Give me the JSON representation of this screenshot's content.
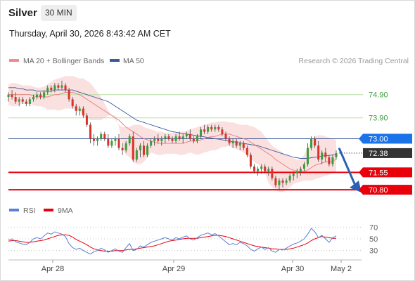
{
  "header": {
    "instrument": "Silver",
    "timeframe": "30 MIN"
  },
  "subtitle": "Thursday, April 30, 2026 8:43:42 AM CET",
  "legend": {
    "ma20_bb": "MA 20 + Bollinger Bands",
    "ma50": "MA 50",
    "source": "Research © 2026 Trading Central"
  },
  "rsi_legend": {
    "rsi": "RSI",
    "ma9": "9MA"
  },
  "colors": {
    "bull": "#3a9e3a",
    "bear": "#d9342b",
    "ma50": "#3c5a9a",
    "ma20": "#e77b7b",
    "band": "#fadbdb",
    "blue_label": "#1a73e8",
    "red_level": "#e8000b",
    "green_level": "#b9dfa4",
    "rsi": "#5b7fd6",
    "rsi_ma": "#e8000b",
    "current": "#333333"
  },
  "chart_data": [
    {
      "type": "candlestick",
      "ylim": [
        70.5,
        75.8
      ],
      "x_ticks": [
        "Apr 28",
        "Apr 29",
        "Apr 30",
        "May 2"
      ],
      "ohlc": [
        [
          74.8,
          75.0,
          74.6,
          74.9
        ],
        [
          74.9,
          75.1,
          74.7,
          74.8
        ],
        [
          74.8,
          75.0,
          74.5,
          74.6
        ],
        [
          74.6,
          74.8,
          74.4,
          74.7
        ],
        [
          74.7,
          74.8,
          74.5,
          74.6
        ],
        [
          74.6,
          74.7,
          74.4,
          74.5
        ],
        [
          74.5,
          74.8,
          74.4,
          74.7
        ],
        [
          74.7,
          74.9,
          74.6,
          74.8
        ],
        [
          74.8,
          75.0,
          74.7,
          74.9
        ],
        [
          74.9,
          75.0,
          74.7,
          74.8
        ],
        [
          74.8,
          75.1,
          74.7,
          75.0
        ],
        [
          75.0,
          75.3,
          74.9,
          75.2
        ],
        [
          75.2,
          75.3,
          75.0,
          75.1
        ],
        [
          75.1,
          75.4,
          75.0,
          75.3
        ],
        [
          75.3,
          75.4,
          75.1,
          75.2
        ],
        [
          75.2,
          75.5,
          75.1,
          75.3
        ],
        [
          75.3,
          75.4,
          75.0,
          75.1
        ],
        [
          75.1,
          75.2,
          74.6,
          74.7
        ],
        [
          74.7,
          74.8,
          74.3,
          74.4
        ],
        [
          74.4,
          74.5,
          74.0,
          74.2
        ],
        [
          74.2,
          74.4,
          74.0,
          74.3
        ],
        [
          74.3,
          74.4,
          73.9,
          74.0
        ],
        [
          74.0,
          74.1,
          73.5,
          73.6
        ],
        [
          73.6,
          73.7,
          72.8,
          73.0
        ],
        [
          73.0,
          73.2,
          72.7,
          72.9
        ],
        [
          72.9,
          73.1,
          72.7,
          73.0
        ],
        [
          73.0,
          73.3,
          72.9,
          73.2
        ],
        [
          73.2,
          73.3,
          72.9,
          73.0
        ],
        [
          73.0,
          73.2,
          72.6,
          72.7
        ],
        [
          72.7,
          73.0,
          72.6,
          72.9
        ],
        [
          72.9,
          73.1,
          72.7,
          73.0
        ],
        [
          73.0,
          73.2,
          72.5,
          72.6
        ],
        [
          72.6,
          72.8,
          72.3,
          72.5
        ],
        [
          72.5,
          72.9,
          72.4,
          72.8
        ],
        [
          72.8,
          73.2,
          72.7,
          73.1
        ],
        [
          73.1,
          73.3,
          72.0,
          72.1
        ],
        [
          72.1,
          72.6,
          72.0,
          72.5
        ],
        [
          72.5,
          72.8,
          72.2,
          72.7
        ],
        [
          72.7,
          72.9,
          72.2,
          72.3
        ],
        [
          72.3,
          72.8,
          72.2,
          72.7
        ],
        [
          72.7,
          73.0,
          72.6,
          72.9
        ],
        [
          72.9,
          73.1,
          72.7,
          73.0
        ],
        [
          73.0,
          73.2,
          72.8,
          72.9
        ],
        [
          72.9,
          73.1,
          72.7,
          73.0
        ],
        [
          73.0,
          73.2,
          72.8,
          73.1
        ],
        [
          73.1,
          73.2,
          72.9,
          73.0
        ],
        [
          73.0,
          73.1,
          72.8,
          72.9
        ],
        [
          72.9,
          73.2,
          72.8,
          73.1
        ],
        [
          73.1,
          73.3,
          72.9,
          73.0
        ],
        [
          73.0,
          73.2,
          72.8,
          73.1
        ],
        [
          73.1,
          73.3,
          73.0,
          73.2
        ],
        [
          73.2,
          73.4,
          72.9,
          73.0
        ],
        [
          73.0,
          73.1,
          72.8,
          72.9
        ],
        [
          72.9,
          73.2,
          72.8,
          73.1
        ],
        [
          73.1,
          73.5,
          73.0,
          73.4
        ],
        [
          73.4,
          73.6,
          73.2,
          73.3
        ],
        [
          73.3,
          73.6,
          73.2,
          73.5
        ],
        [
          73.5,
          73.6,
          73.3,
          73.4
        ],
        [
          73.4,
          73.6,
          73.3,
          73.5
        ],
        [
          73.5,
          73.6,
          73.3,
          73.4
        ],
        [
          73.4,
          73.5,
          73.1,
          73.2
        ],
        [
          73.2,
          73.3,
          72.9,
          73.0
        ],
        [
          73.0,
          73.1,
          72.7,
          72.8
        ],
        [
          72.8,
          73.0,
          72.6,
          72.9
        ],
        [
          72.9,
          73.0,
          72.6,
          72.7
        ],
        [
          72.7,
          72.9,
          72.5,
          72.8
        ],
        [
          72.8,
          72.9,
          72.5,
          72.6
        ],
        [
          72.6,
          72.7,
          72.2,
          72.3
        ],
        [
          72.3,
          72.4,
          71.7,
          71.8
        ],
        [
          71.8,
          71.9,
          71.5,
          71.6
        ],
        [
          71.6,
          71.8,
          71.4,
          71.7
        ],
        [
          71.7,
          71.9,
          71.5,
          71.8
        ],
        [
          71.8,
          71.9,
          71.5,
          71.6
        ],
        [
          71.6,
          71.8,
          71.4,
          71.7
        ],
        [
          71.7,
          71.8,
          71.2,
          71.3
        ],
        [
          71.3,
          71.4,
          70.9,
          71.0
        ],
        [
          71.0,
          71.3,
          70.8,
          71.2
        ],
        [
          71.2,
          71.3,
          70.9,
          71.1
        ],
        [
          71.1,
          71.3,
          71.0,
          71.2
        ],
        [
          71.2,
          71.5,
          71.1,
          71.4
        ],
        [
          71.4,
          71.6,
          71.2,
          71.5
        ],
        [
          71.5,
          71.7,
          71.3,
          71.6
        ],
        [
          71.6,
          71.8,
          71.4,
          71.7
        ],
        [
          71.7,
          72.0,
          71.6,
          71.9
        ],
        [
          71.9,
          72.8,
          71.8,
          72.6
        ],
        [
          72.6,
          73.1,
          72.5,
          73.0
        ],
        [
          73.0,
          73.1,
          72.6,
          72.7
        ],
        [
          72.7,
          72.9,
          72.0,
          72.1
        ],
        [
          72.1,
          72.5,
          71.9,
          72.4
        ],
        [
          72.4,
          72.6,
          72.0,
          72.2
        ],
        [
          72.2,
          72.3,
          71.8,
          71.9
        ],
        [
          71.9,
          72.3,
          71.8,
          72.2
        ],
        [
          72.2,
          72.5,
          72.1,
          72.38
        ]
      ],
      "ma20": [
        74.9,
        74.9,
        74.9,
        74.9,
        74.9,
        74.9,
        74.9,
        74.85,
        74.8,
        74.8,
        74.8,
        74.8,
        74.85,
        74.9,
        74.9,
        74.95,
        75.0,
        75.0,
        75.0,
        74.95,
        74.9,
        74.8,
        74.7,
        74.6,
        74.5,
        74.4,
        74.3,
        74.2,
        74.1,
        74.0,
        73.9,
        73.8,
        73.65,
        73.5,
        73.4,
        73.3,
        73.2,
        73.1,
        73.0,
        72.95,
        72.9,
        72.85,
        72.8,
        72.8,
        72.8,
        72.8,
        72.8,
        72.8,
        72.8,
        72.8,
        72.85,
        72.9,
        72.9,
        72.9,
        72.95,
        73.0,
        73.05,
        73.1,
        73.1,
        73.15,
        73.2,
        73.2,
        73.2,
        73.15,
        73.1,
        73.05,
        73.0,
        72.95,
        72.85,
        72.75,
        72.65,
        72.55,
        72.45,
        72.35,
        72.25,
        72.1,
        72.0,
        71.9,
        71.8,
        71.7,
        71.65,
        71.6,
        71.58,
        71.6,
        71.65,
        71.75,
        71.85,
        71.9,
        71.95,
        72.0,
        72.0,
        72.05,
        72.1
      ],
      "bb_upper": [
        75.35,
        75.4,
        75.4,
        75.35,
        75.3,
        75.3,
        75.3,
        75.25,
        75.2,
        75.2,
        75.25,
        75.35,
        75.45,
        75.55,
        75.6,
        75.65,
        75.7,
        75.7,
        75.7,
        75.65,
        75.6,
        75.6,
        75.5,
        75.4,
        75.2,
        75.0,
        74.8,
        74.5,
        74.2,
        74.0,
        73.8,
        73.6,
        73.5,
        73.5,
        73.5,
        73.6,
        73.6,
        73.6,
        73.5,
        73.45,
        73.4,
        73.35,
        73.3,
        73.3,
        73.25,
        73.25,
        73.25,
        73.25,
        73.3,
        73.3,
        73.35,
        73.4,
        73.45,
        73.5,
        73.55,
        73.6,
        73.65,
        73.7,
        73.7,
        73.75,
        73.75,
        73.75,
        73.7,
        73.7,
        73.65,
        73.6,
        73.6,
        73.6,
        73.55,
        73.5,
        73.4,
        73.3,
        73.1,
        72.9,
        72.7,
        72.6,
        72.5,
        72.4,
        72.3,
        72.2,
        72.15,
        72.1,
        72.1,
        72.3,
        72.6,
        72.9,
        73.1,
        73.15,
        73.15,
        73.1,
        73.05,
        73.0,
        72.95
      ],
      "bb_lower": [
        74.45,
        74.4,
        74.4,
        74.45,
        74.5,
        74.5,
        74.5,
        74.45,
        74.4,
        74.4,
        74.35,
        74.25,
        74.25,
        74.25,
        74.2,
        74.25,
        74.3,
        74.3,
        74.3,
        74.25,
        74.2,
        74.0,
        73.9,
        73.8,
        73.8,
        73.8,
        73.8,
        73.9,
        74.0,
        74.0,
        74.0,
        73.5,
        72.6,
        72.3,
        72.2,
        72.0,
        71.9,
        71.9,
        72.0,
        72.2,
        72.4,
        72.35,
        72.3,
        72.3,
        72.35,
        72.35,
        72.35,
        72.35,
        72.3,
        72.3,
        72.35,
        72.4,
        72.35,
        72.3,
        72.35,
        72.4,
        72.45,
        72.5,
        72.5,
        72.55,
        72.65,
        72.65,
        72.7,
        72.6,
        72.55,
        72.5,
        72.4,
        72.3,
        72.15,
        72.0,
        71.9,
        71.8,
        71.5,
        71.1,
        70.9,
        70.8,
        70.7,
        70.7,
        70.8,
        70.9,
        71.05,
        71.1,
        71.15,
        71.2,
        71.2,
        71.2,
        71.25,
        71.3,
        71.35,
        71.4,
        71.45,
        71.5,
        71.55
      ],
      "ma50": [
        75.2,
        75.2,
        75.2,
        75.15,
        75.15,
        75.1,
        75.1,
        75.1,
        75.05,
        75.05,
        75.05,
        75.05,
        75.05,
        75.1,
        75.1,
        75.1,
        75.1,
        75.1,
        75.1,
        75.05,
        75.0,
        74.95,
        74.9,
        74.85,
        74.8,
        74.75,
        74.7,
        74.65,
        74.6,
        74.5,
        74.4,
        74.3,
        74.2,
        74.1,
        74.0,
        73.9,
        73.8,
        73.75,
        73.7,
        73.65,
        73.6,
        73.55,
        73.5,
        73.45,
        73.4,
        73.35,
        73.3,
        73.28,
        73.25,
        73.22,
        73.2,
        73.18,
        73.15,
        73.12,
        73.1,
        73.08,
        73.05,
        73.03,
        73.0,
        72.98,
        72.95,
        72.92,
        72.9,
        72.87,
        72.85,
        72.82,
        72.8,
        72.77,
        72.75,
        72.72,
        72.7,
        72.65,
        72.6,
        72.55,
        72.5,
        72.45,
        72.4,
        72.35,
        72.3,
        72.25,
        72.2,
        72.18,
        72.15,
        72.15,
        72.15,
        72.18,
        72.2,
        72.22,
        72.25,
        72.27,
        72.28,
        72.3,
        72.32
      ],
      "forecast": [
        72.6,
        70.8
      ],
      "levels": [
        {
          "value": 74.9,
          "label": "74.90",
          "kind": "resistance-2"
        },
        {
          "value": 73.9,
          "label": "73.90",
          "kind": "resistance-1"
        },
        {
          "value": 73.0,
          "label": "73.00",
          "kind": "pivot"
        },
        {
          "value": 72.38,
          "label": "72.38",
          "kind": "current"
        },
        {
          "value": 71.55,
          "label": "71.55",
          "kind": "support-1"
        },
        {
          "value": 70.8,
          "label": "70.80",
          "kind": "support-2"
        }
      ]
    },
    {
      "type": "line",
      "name": "RSI panel",
      "ylim": [
        20,
        80
      ],
      "y_ticks": [
        "70",
        "50",
        "30"
      ],
      "rsi": [
        48,
        50,
        45,
        43,
        41,
        40,
        44,
        50,
        52,
        50,
        55,
        60,
        58,
        62,
        60,
        58,
        54,
        42,
        35,
        32,
        34,
        30,
        27,
        24,
        28,
        30,
        34,
        31,
        27,
        30,
        33,
        29,
        27,
        35,
        42,
        30,
        32,
        38,
        36,
        40,
        44,
        46,
        48,
        50,
        52,
        50,
        48,
        52,
        50,
        53,
        55,
        50,
        48,
        52,
        56,
        58,
        60,
        57,
        59,
        55,
        50,
        45,
        40,
        42,
        40,
        44,
        42,
        38,
        32,
        29,
        33,
        36,
        32,
        35,
        29,
        27,
        32,
        31,
        34,
        38,
        41,
        43,
        46,
        50,
        58,
        68,
        62,
        52,
        56,
        50,
        44,
        52,
        55
      ],
      "ma9": [
        46,
        47,
        47,
        46,
        45,
        44,
        44,
        45,
        46,
        47,
        48,
        50,
        52,
        54,
        56,
        57,
        57,
        56,
        53,
        49,
        46,
        43,
        40,
        36,
        33,
        31,
        30,
        29,
        29,
        29,
        30,
        30,
        30,
        31,
        32,
        32,
        33,
        34,
        35,
        36,
        37,
        38,
        40,
        42,
        44,
        46,
        47,
        48,
        49,
        50,
        51,
        51,
        51,
        51,
        52,
        53,
        54,
        55,
        56,
        56,
        55,
        54,
        52,
        50,
        48,
        46,
        44,
        42,
        40,
        38,
        37,
        36,
        35,
        34,
        33,
        33,
        32,
        32,
        32,
        33,
        34,
        36,
        38,
        40,
        43,
        47,
        50,
        52,
        54,
        53,
        52,
        51,
        51
      ]
    }
  ]
}
